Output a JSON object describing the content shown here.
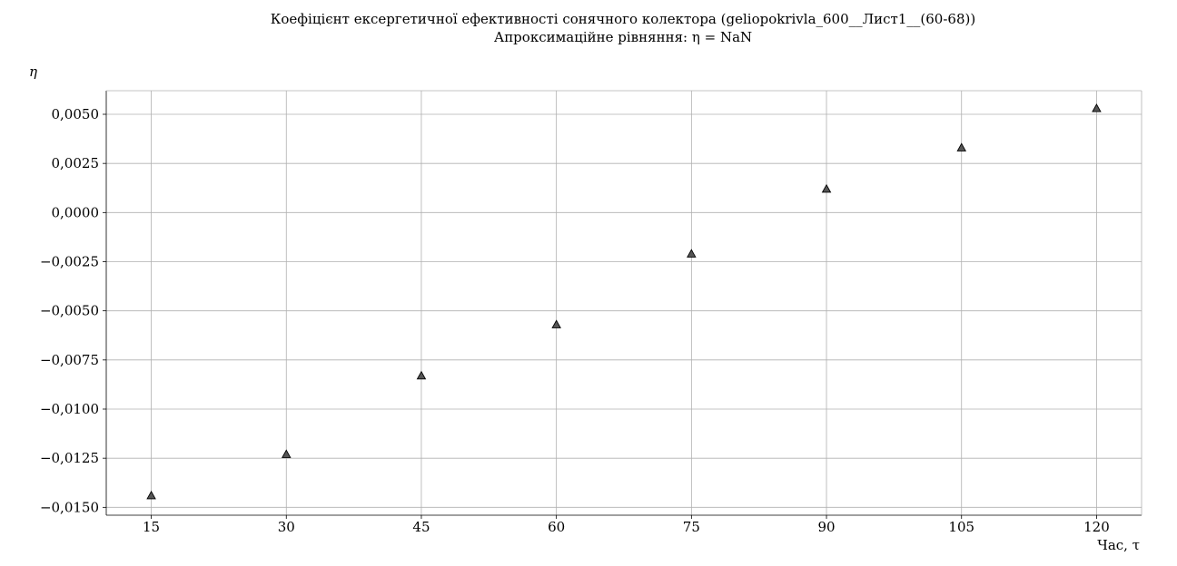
{
  "chart_data": {
    "type": "scatter",
    "title": "Коефіцієнт ексергетичної ефективності сонячного колектора (geliopokrivla_600__Лист1__(60-68))",
    "subtitle": "Апроксимаційне рівняння: η = NaN",
    "xlabel": "Час, τ",
    "ylabel": "η",
    "x": [
      15,
      30,
      45,
      60,
      75,
      90,
      105,
      120
    ],
    "y": [
      -0.0144,
      -0.0123,
      -0.0083,
      -0.0057,
      -0.0021,
      0.0012,
      0.0033,
      0.0053
    ],
    "xlim": [
      10,
      125
    ],
    "ylim": [
      -0.0154,
      0.0062
    ],
    "xticks": [
      15,
      30,
      45,
      60,
      75,
      90,
      105,
      120
    ],
    "xtick_labels": [
      "15",
      "30",
      "45",
      "60",
      "75",
      "90",
      "105",
      "120"
    ],
    "yticks": [
      -0.015,
      -0.0125,
      -0.01,
      -0.0075,
      -0.005,
      -0.0025,
      0.0,
      0.0025,
      0.005
    ],
    "ytick_labels": [
      "−0,0150",
      "−0,0125",
      "−0,0100",
      "−0,0075",
      "−0,0050",
      "−0,0025",
      "0,0000",
      "0,0025",
      "0,0050"
    ],
    "grid": true,
    "marker": "triangle",
    "marker_color": "#555555",
    "marker_edge_color": "#000000"
  }
}
